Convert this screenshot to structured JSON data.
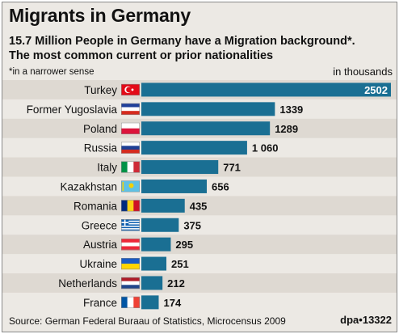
{
  "chart_data": {
    "type": "bar",
    "orientation": "horizontal",
    "title": "Migrants in Germany",
    "subtitle_lines": [
      "15.7 Million People in Germany have a Migration background*.",
      "The most common current or prior nationalities"
    ],
    "footnote": "*in a narrower sense",
    "unit_label": "in thousands",
    "categories": [
      "Turkey",
      "Former Yugoslavia",
      "Poland",
      "Russia",
      "Italy",
      "Kazakhstan",
      "Romania",
      "Greece",
      "Austria",
      "Ukraine",
      "Netherlands",
      "France"
    ],
    "values": [
      2502,
      1339,
      1289,
      1060,
      771,
      656,
      435,
      375,
      295,
      251,
      212,
      174
    ],
    "value_labels": [
      "2502",
      "1339",
      "1289",
      "1 060",
      "771",
      "656",
      "435",
      "375",
      "295",
      "251",
      "212",
      "174"
    ],
    "flag_icons": [
      "turkey-flag-icon",
      "yugoslavia-flag-icon",
      "poland-flag-icon",
      "russia-flag-icon",
      "italy-flag-icon",
      "kazakhstan-flag-icon",
      "romania-flag-icon",
      "greece-flag-icon",
      "austria-flag-icon",
      "ukraine-flag-icon",
      "netherlands-flag-icon",
      "france-flag-icon"
    ],
    "xlim": [
      0,
      2502
    ],
    "bar_color": "#1a6f93",
    "row_stripe_color": "#ded9d2",
    "background_color": "#ece9e4",
    "source": "Source: German Federal Buraau of Statistics, Microcensus 2009",
    "credit": "dpa•13322"
  }
}
